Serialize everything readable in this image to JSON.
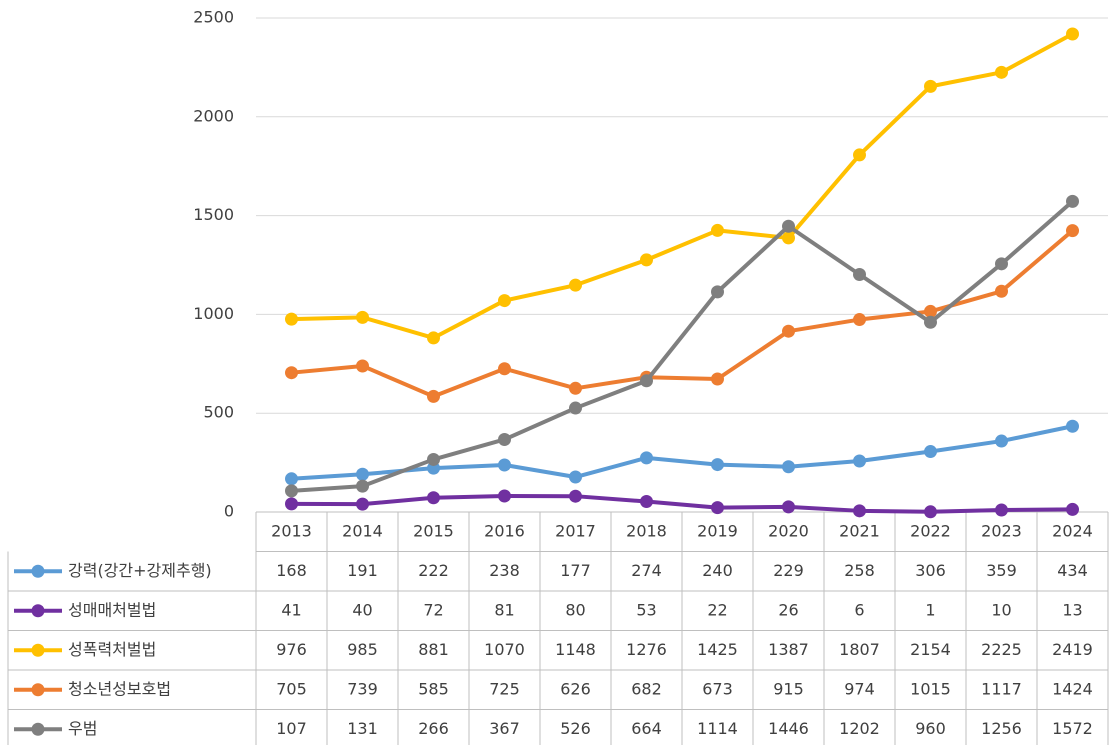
{
  "chart_data": {
    "type": "line",
    "categories": [
      "2013",
      "2014",
      "2015",
      "2016",
      "2017",
      "2018",
      "2019",
      "2020",
      "2021",
      "2022",
      "2023",
      "2024"
    ],
    "series": [
      {
        "name": "강력(강간+강제추행)",
        "color": "#5b9bd5",
        "values": [
          168,
          191,
          222,
          238,
          177,
          274,
          240,
          229,
          258,
          306,
          359,
          434
        ]
      },
      {
        "name": "성매매처벌법",
        "color": "#7030a0",
        "values": [
          41,
          40,
          72,
          81,
          80,
          53,
          22,
          26,
          6,
          1,
          10,
          13
        ]
      },
      {
        "name": "성폭력처벌법",
        "color": "#ffc000",
        "values": [
          976,
          985,
          881,
          1070,
          1148,
          1276,
          1425,
          1387,
          1807,
          2154,
          2225,
          2419
        ]
      },
      {
        "name": "청소년성보호법",
        "color": "#ed7d31",
        "values": [
          705,
          739,
          585,
          725,
          626,
          682,
          673,
          915,
          974,
          1015,
          1117,
          1424
        ]
      },
      {
        "name": "우범",
        "color": "#7f7f7f",
        "values": [
          107,
          131,
          266,
          367,
          526,
          664,
          1114,
          1446,
          1202,
          960,
          1256,
          1572
        ]
      }
    ],
    "ylim": [
      0,
      2500
    ],
    "yticks": [
      0,
      500,
      1000,
      1500,
      2000,
      2500
    ],
    "grid": true
  }
}
